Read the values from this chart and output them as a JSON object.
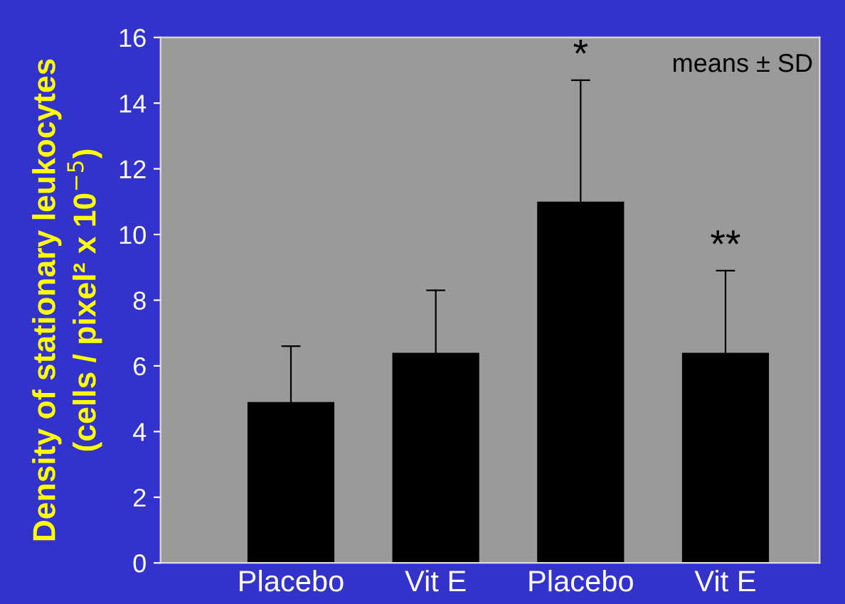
{
  "chart_data": {
    "type": "bar",
    "ylabel": "Density of stationary leukocytes\n(cells / pixel² x 10$^{−5}$)",
    "categories": [
      "Placebo",
      "Vit E",
      "Placebo",
      "Vit E"
    ],
    "values": [
      4.9,
      6.4,
      11.0,
      6.4
    ],
    "errors": [
      [
        4.9,
        6.6
      ],
      [
        6.4,
        8.3
      ],
      [
        11.0,
        14.7
      ],
      [
        6.4,
        8.9
      ]
    ],
    "color": "#000000",
    "ylim": [
      0,
      16
    ],
    "yticks": [
      0,
      2,
      4,
      6,
      8,
      10,
      12,
      14,
      16
    ],
    "annotations": [
      "*",
      "**",
      "means ± SD"
    ],
    "grid": false,
    "legend": false
  }
}
